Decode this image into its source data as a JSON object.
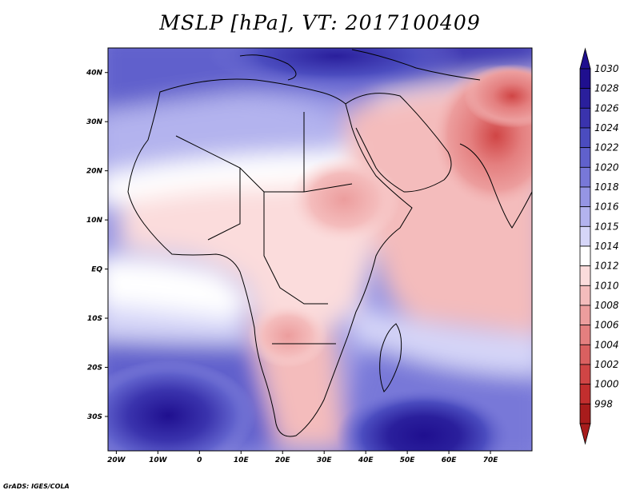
{
  "title": "MSLP [hPa], VT: 2017100409",
  "credit": "GrADS: IGES/COLA",
  "map": {
    "lon_range": [
      -22,
      80
    ],
    "lat_range": [
      -37,
      45
    ],
    "x_ticks": [
      {
        "lon": -20,
        "label": "20W"
      },
      {
        "lon": -10,
        "label": "10W"
      },
      {
        "lon": 0,
        "label": "0"
      },
      {
        "lon": 10,
        "label": "10E"
      },
      {
        "lon": 20,
        "label": "20E"
      },
      {
        "lon": 30,
        "label": "30E"
      },
      {
        "lon": 40,
        "label": "40E"
      },
      {
        "lon": 50,
        "label": "50E"
      },
      {
        "lon": 60,
        "label": "60E"
      },
      {
        "lon": 70,
        "label": "70E"
      }
    ],
    "y_ticks": [
      {
        "lat": 40,
        "label": "40N"
      },
      {
        "lat": 30,
        "label": "30N"
      },
      {
        "lat": 20,
        "label": "20N"
      },
      {
        "lat": 10,
        "label": "10N"
      },
      {
        "lat": 0,
        "label": "EQ"
      },
      {
        "lat": -10,
        "label": "10S"
      },
      {
        "lat": -20,
        "label": "20S"
      },
      {
        "lat": -30,
        "label": "30S"
      }
    ]
  },
  "colorbar": {
    "levels": [
      {
        "label": "1030",
        "color": "#1f0f8f"
      },
      {
        "label": "1028",
        "color": "#2a1f9c"
      },
      {
        "label": "1026",
        "color": "#3a33ad"
      },
      {
        "label": "1024",
        "color": "#4b4cbf"
      },
      {
        "label": "1022",
        "color": "#6061cc"
      },
      {
        "label": "1020",
        "color": "#7878d8"
      },
      {
        "label": "1018",
        "color": "#9595e4"
      },
      {
        "label": "1016",
        "color": "#b3b3ee"
      },
      {
        "label": "1015",
        "color": "#d6d6f8"
      },
      {
        "label": "1014",
        "color": "#ffffff"
      },
      {
        "label": "1012",
        "color": "#fbdcdc"
      },
      {
        "label": "1010",
        "color": "#f4bcbc"
      },
      {
        "label": "1008",
        "color": "#ec9d9d"
      },
      {
        "label": "1006",
        "color": "#e47f7f"
      },
      {
        "label": "1004",
        "color": "#da6060"
      },
      {
        "label": "1002",
        "color": "#d04545"
      },
      {
        "label": "1000",
        "color": "#c22e2e"
      },
      {
        "label": "998",
        "color": "#a81c1c"
      }
    ]
  }
}
